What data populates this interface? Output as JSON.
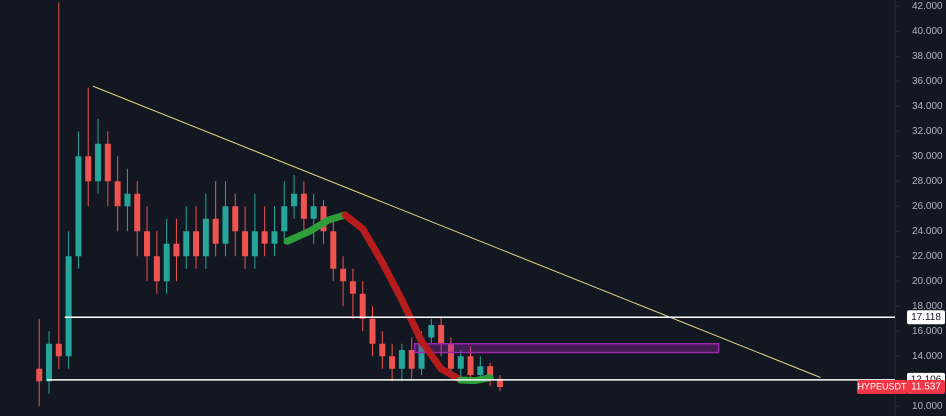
{
  "chart_data": {
    "type": "candlestick",
    "x": [
      0,
      1,
      2,
      3,
      4,
      5,
      6,
      7,
      8,
      9,
      10,
      11,
      12,
      13,
      14,
      15,
      16,
      17,
      18,
      19,
      20,
      21,
      22,
      23,
      24,
      25,
      26,
      27,
      28,
      29,
      30,
      31,
      32,
      33,
      34,
      35,
      36,
      37,
      38,
      39,
      40,
      41,
      42,
      43,
      44,
      45,
      46,
      47
    ],
    "open": [
      13,
      12,
      15,
      14,
      22,
      30,
      28,
      31,
      28,
      26,
      27,
      24,
      22,
      20,
      23,
      22,
      24,
      22,
      25,
      23,
      26,
      24,
      22,
      24,
      23,
      24,
      26,
      27,
      25,
      26,
      24,
      21,
      20,
      19,
      17,
      15,
      14,
      13,
      14.5,
      13,
      15.5,
      16.5,
      15,
      13,
      14,
      12.5,
      13.2,
      12.2
    ],
    "high": [
      17,
      16,
      42.3,
      24,
      32,
      35.5,
      33,
      32,
      30,
      29,
      28,
      26,
      24,
      25,
      25,
      26,
      26,
      27,
      28,
      28,
      27,
      26,
      27,
      26,
      26,
      28,
      28.5,
      28,
      27,
      26.5,
      25,
      22,
      21,
      20,
      18,
      16,
      15,
      15,
      15.5,
      16,
      17,
      17.2,
      15.5,
      14.5,
      14.8,
      14,
      13.5,
      12.5
    ],
    "low": [
      10,
      11,
      13,
      13,
      21,
      26,
      27,
      26,
      24,
      24,
      22,
      20,
      19,
      19,
      20,
      21,
      21,
      21,
      22,
      22,
      22,
      21,
      21,
      22,
      22,
      23,
      25,
      24,
      23,
      23,
      20,
      18,
      17,
      16,
      14,
      13,
      12,
      12,
      12.2,
      12.5,
      15,
      14,
      12.5,
      12.3,
      12,
      12,
      11.6,
      11.2
    ],
    "close": [
      12,
      15,
      14,
      22,
      30,
      28,
      31,
      28,
      26,
      27,
      24,
      22,
      20,
      23,
      22,
      24,
      22,
      25,
      23,
      26,
      24,
      22,
      24,
      23,
      24,
      26,
      27,
      25,
      26,
      24,
      21,
      20,
      19,
      17,
      15,
      14,
      13,
      14.5,
      13,
      15.5,
      16.5,
      15,
      13,
      14,
      12.5,
      13.2,
      12.2,
      11.537
    ],
    "up_color": "#26a69a",
    "down_color": "#ef5350",
    "xlim": [
      -4,
      87.3
    ],
    "ylim": [
      9.7,
      42.5
    ],
    "yticks": [
      {
        "value": 42,
        "label": "42.000"
      },
      {
        "value": 40,
        "label": "40.000"
      },
      {
        "value": 38,
        "label": "38.000"
      },
      {
        "value": 36,
        "label": "36.000"
      },
      {
        "value": 34,
        "label": "34.000"
      },
      {
        "value": 32,
        "label": "32.000"
      },
      {
        "value": 30,
        "label": "30.000"
      },
      {
        "value": 28,
        "label": "28.000"
      },
      {
        "value": 26,
        "label": "26.000"
      },
      {
        "value": 24,
        "label": "24.000"
      },
      {
        "value": 22,
        "label": "22.000"
      },
      {
        "value": 20,
        "label": "20.000"
      },
      {
        "value": 18,
        "label": "18.000"
      },
      {
        "value": 16,
        "label": "16.000"
      },
      {
        "value": 14,
        "label": "14.000"
      },
      {
        "value": 12,
        "label": "12.000"
      },
      {
        "value": 10,
        "label": "10.000"
      }
    ],
    "grid": false,
    "trendline": {
      "x": [
        5.5,
        79.7
      ],
      "y": [
        35.6,
        12.3
      ],
      "color": "#e6d98a"
    },
    "price_lines": [
      {
        "x": 2.6,
        "value": 17.118
      },
      {
        "x": 0.8,
        "value": 12.106
      }
    ],
    "zone": {
      "x": [
        38.3,
        69.3
      ],
      "y": [
        14.3,
        15.0
      ],
      "color": "#9c27b0"
    },
    "smooth_curve": [
      {
        "color": "#2e9e3a",
        "x": [
          25.3,
          27.6,
          29.5,
          31.2
        ],
        "y": [
          23.2,
          24.0,
          24.9,
          25.3
        ]
      },
      {
        "color": "#b71c1c",
        "x": [
          31.2,
          33,
          35,
          37,
          39,
          41,
          43
        ],
        "y": [
          25.3,
          24.2,
          21.5,
          18.5,
          15.2,
          13,
          12.1
        ]
      },
      {
        "color": "#2e9e3a",
        "x": [
          43,
          44.5,
          46
        ],
        "y": [
          12.1,
          12.05,
          12.3
        ]
      }
    ],
    "symbol": "HYPEUSDT",
    "last_price": 11.537
  }
}
